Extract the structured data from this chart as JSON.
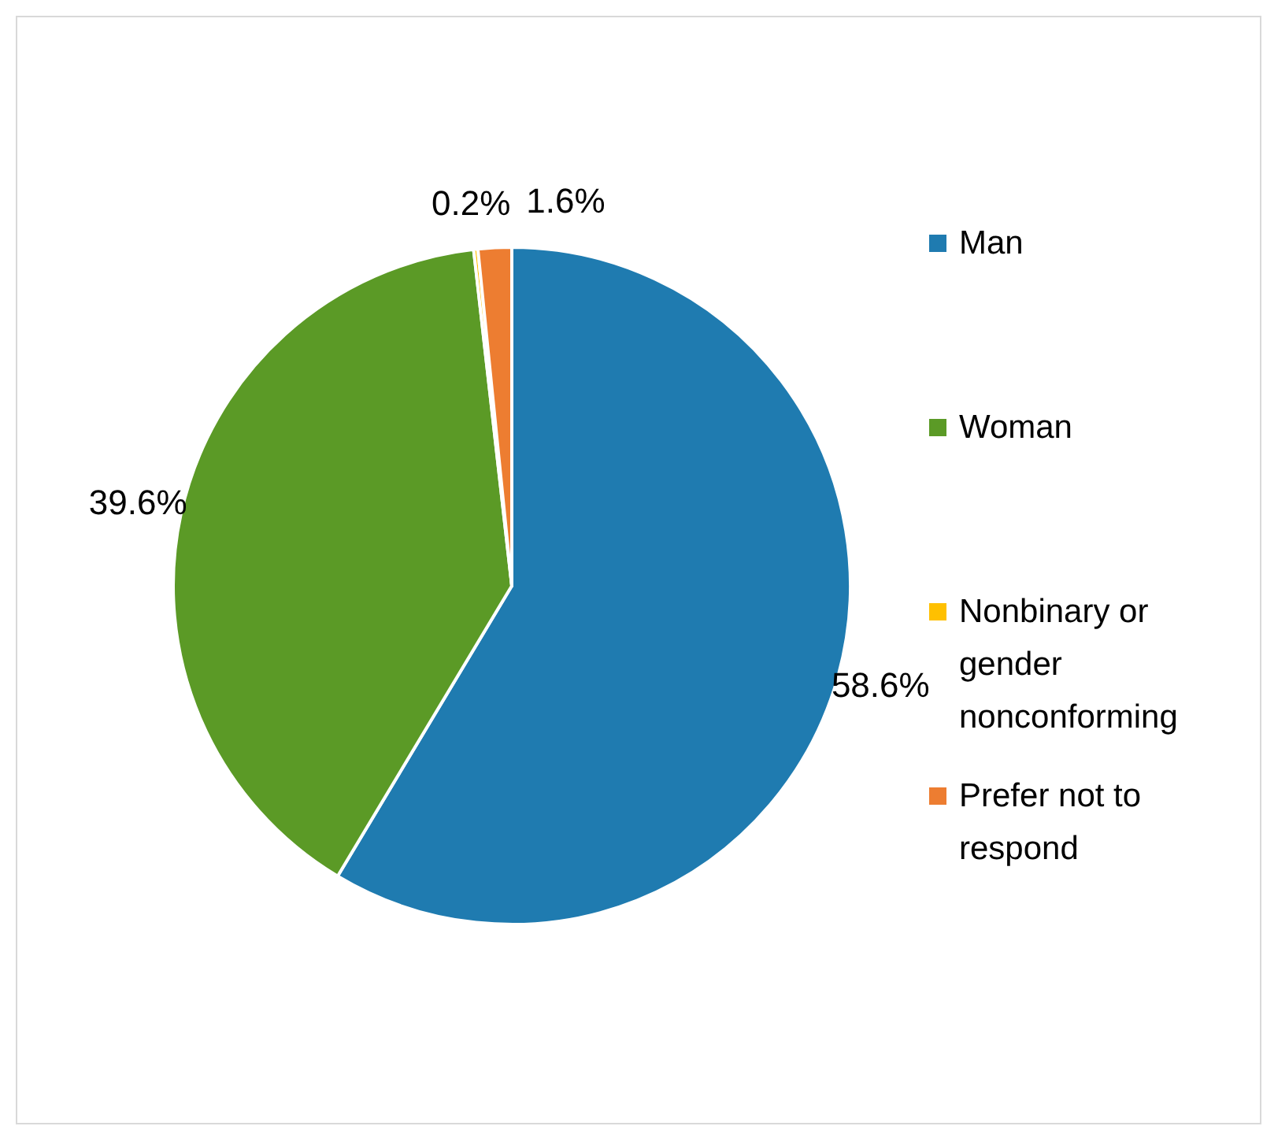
{
  "chart_data": {
    "type": "pie",
    "categories": [
      "Man",
      "Woman",
      "Nonbinary or gender nonconforming",
      "Prefer not to respond"
    ],
    "values": [
      58.6,
      39.6,
      0.2,
      1.6
    ],
    "colors": [
      "#1f7bb0",
      "#5b9a26",
      "#ffc000",
      "#ed7d31"
    ],
    "value_labels": [
      "58.6%",
      "39.6%",
      "0.2%",
      "1.6%"
    ],
    "legend": "right"
  }
}
